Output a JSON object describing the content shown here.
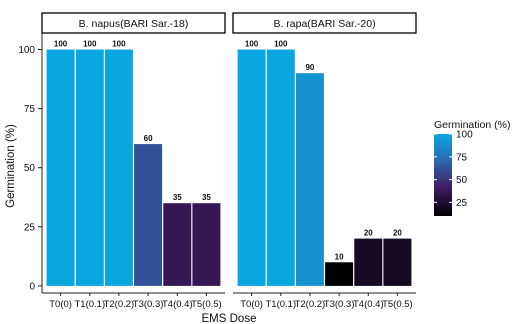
{
  "chart_data": {
    "type": "bar",
    "xlabel": "EMS Dose",
    "ylabel": "Germination (%)",
    "ylim": [
      0,
      100
    ],
    "yticks": [
      0,
      25,
      50,
      75,
      100
    ],
    "grid": false,
    "legend": {
      "title": "Germination (%)",
      "position": "right",
      "ticks": [
        100,
        75,
        50,
        25
      ]
    },
    "colormap": {
      "low_value": 10,
      "high_value": 100,
      "stops": [
        "#000000",
        "#3f1d63",
        "#2a6db3",
        "#0aa6df"
      ]
    },
    "panels": [
      {
        "title": "B. napus(BARI Sar.-18)",
        "categories": [
          "T0(0)",
          "T1(0.1)",
          "T2(0.2)",
          "T3(0.3)",
          "T4(0.4)",
          "T5(0.5)"
        ],
        "values": [
          100,
          100,
          100,
          60,
          35,
          35
        ],
        "labels": [
          "100",
          "100",
          "100",
          "60",
          "35",
          "35"
        ]
      },
      {
        "title": "B. rapa(BARI Sar.-20)",
        "categories": [
          "T0(0)",
          "T1(0.1)",
          "T2(0.2)",
          "T3(0.3)",
          "T4(0.4)",
          "T5(0.5)"
        ],
        "values": [
          100,
          100,
          90,
          10,
          20,
          20
        ],
        "labels": [
          "100",
          "100",
          "90",
          "10",
          "20",
          "20"
        ]
      }
    ]
  }
}
